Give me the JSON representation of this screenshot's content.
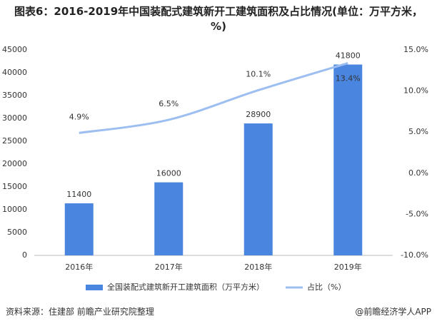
{
  "chart_data": {
    "type": "bar-line",
    "title": "图表6：2016-2019年中国装配式建筑新开工建筑面积及占比情况(单位：万平方米，%)",
    "categories": [
      "2016年",
      "2017年",
      "2018年",
      "2019年"
    ],
    "series": [
      {
        "name": "全国装配式建筑新开工建筑面积（万平方米）",
        "type": "bar",
        "color": "#4a86e0",
        "values": [
          11400,
          16000,
          28900,
          41800
        ]
      },
      {
        "name": "占比（%）",
        "type": "line",
        "axis": "y2",
        "color": "#9cbef0",
        "values": [
          4.9,
          6.5,
          10.1,
          13.4
        ],
        "value_labels": [
          "4.9%",
          "6.5%",
          "10.1%",
          "13.4%"
        ]
      }
    ],
    "ylim": [
      0,
      45000
    ],
    "yticks": [
      0,
      5000,
      10000,
      15000,
      20000,
      25000,
      30000,
      35000,
      40000,
      45000
    ],
    "y2lim": [
      -10,
      15
    ],
    "y2ticks": [
      {
        "value": -10,
        "label": "-10.0%"
      },
      {
        "value": -5,
        "label": "-5.0%"
      },
      {
        "value": 0,
        "label": "0.0%"
      },
      {
        "value": 5,
        "label": "5.0%"
      },
      {
        "value": 10,
        "label": "10.0%"
      },
      {
        "value": 15,
        "label": "15.0%"
      }
    ],
    "legend": "bottom"
  },
  "footer": {
    "source": "资料来源：住建部   前瞻产业研究院整理",
    "brand": "@前瞻经济学人APP"
  }
}
